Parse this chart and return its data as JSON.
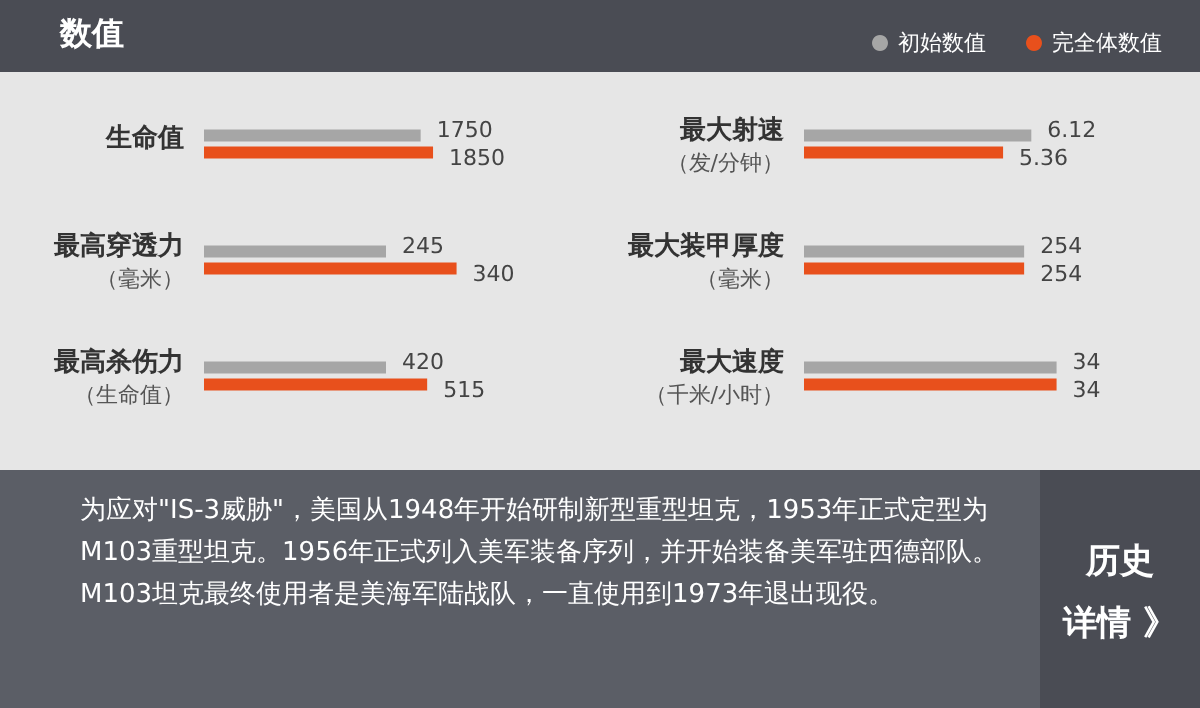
{
  "chart_data": [
    {
      "type": "other",
      "title": "数值"
    },
    {
      "type": "bar",
      "orientation": "horizontal",
      "title": "生命值",
      "categories": [
        null
      ],
      "data_labels": true,
      "legend": "top right",
      "series": [
        {
          "name": "初始数值",
          "color": "#a6a6a6",
          "values": [
            1750
          ]
        },
        {
          "name": "完全体数值",
          "color": "#e8501c",
          "values": [
            1850
          ]
        }
      ]
    },
    {
      "type": "bar",
      "orientation": "horizontal",
      "title": "最大射速",
      "subtitle": "（发/分钟）",
      "categories": [
        null
      ],
      "data_labels": true,
      "series": [
        {
          "name": "初始数值",
          "color": "#a6a6a6",
          "values": [
            6.12
          ]
        },
        {
          "name": "完全体数值",
          "color": "#e8501c",
          "values": [
            5.36
          ]
        }
      ]
    },
    {
      "type": "bar",
      "orientation": "horizontal",
      "title": "最高穿透力",
      "subtitle": "（毫米）",
      "categories": [
        null
      ],
      "data_labels": true,
      "series": [
        {
          "name": "初始数值",
          "color": "#a6a6a6",
          "values": [
            245
          ]
        },
        {
          "name": "完全体数值",
          "color": "#e8501c",
          "values": [
            340
          ]
        }
      ]
    },
    {
      "type": "bar",
      "orientation": "horizontal",
      "title": "最大装甲厚度",
      "subtitle": "（毫米）",
      "categories": [
        null
      ],
      "data_labels": true,
      "series": [
        {
          "name": "初始数值",
          "color": "#a6a6a6",
          "values": [
            254
          ]
        },
        {
          "name": "完全体数值",
          "color": "#e8501c",
          "values": [
            254
          ]
        }
      ]
    },
    {
      "type": "bar",
      "orientation": "horizontal",
      "title": "最高杀伤力",
      "subtitle": "（生命值）",
      "categories": [
        null
      ],
      "data_labels": true,
      "series": [
        {
          "name": "初始数值",
          "color": "#a6a6a6",
          "values": [
            420
          ]
        },
        {
          "name": "完全体数值",
          "color": "#e8501c",
          "values": [
            515
          ]
        }
      ]
    },
    {
      "type": "bar",
      "orientation": "horizontal",
      "title": "最大速度",
      "subtitle": "（千米/小时）",
      "categories": [
        null
      ],
      "data_labels": true,
      "series": [
        {
          "name": "初始数值",
          "color": "#a6a6a6",
          "values": [
            34
          ]
        },
        {
          "name": "完全体数值",
          "color": "#e8501c",
          "values": [
            34
          ]
        }
      ]
    },
    {
      "type": "other",
      "annotations": [
        "为应对\"IS-3威胁\"，美国从1948年开始研制新型重型坦克，1953年正式定型为M103重型坦克。1956年正式列入美军装备序列，并开始装备美军驻西德部队。M103坦克最终使用者是美海军陆战队，一直使用到1973年退出现役。",
        "历史",
        "详情 》"
      ]
    }
  ]
}
